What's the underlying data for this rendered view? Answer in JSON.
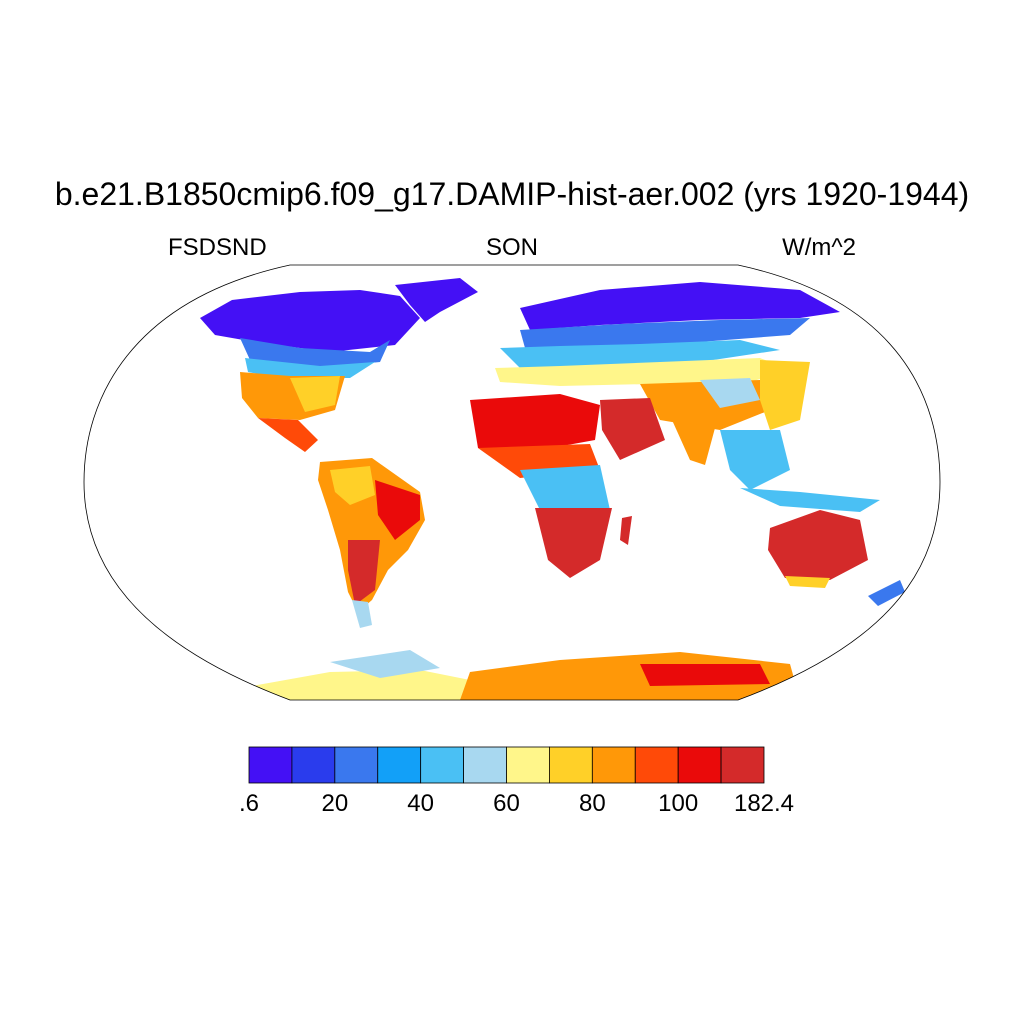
{
  "title": "b.e21.B1850cmip6.f09_g17.DAMIP-hist-aer.002 (yrs 1920-1944)",
  "left_string": "FSDSND",
  "center_string": "SON",
  "right_string": "W/m^2",
  "colorbar": {
    "colors": [
      "#4410f5",
      "#2a3ced",
      "#3a78ee",
      "#12a0f8",
      "#4ac0f4",
      "#a8d8f0",
      "#fff68a",
      "#ffd028",
      "#ff9808",
      "#ff4a08",
      "#ea0a0a",
      "#d42a2a"
    ],
    "labels": [
      ".6",
      "20",
      "40",
      "60",
      "80",
      "100",
      "182.4"
    ]
  },
  "chart_data": {
    "type": "heatmap",
    "projection": "Robinson",
    "variable": "FSDSND",
    "season": "SON",
    "units": "W/m^2",
    "levels": [
      0.6,
      10,
      20,
      30,
      40,
      50,
      60,
      70,
      80,
      90,
      100,
      110,
      182.4
    ],
    "range": [
      0.6,
      182.4
    ],
    "regions": [
      {
        "region": "Arctic / Northern Canada / Siberia",
        "value": 10
      },
      {
        "region": "Greenland coast",
        "value": 5
      },
      {
        "region": "Alaska",
        "value": 15
      },
      {
        "region": "Southern Canada",
        "value": 35
      },
      {
        "region": "Northern Europe / Russia",
        "value": 30
      },
      {
        "region": "Central Asia",
        "value": 75
      },
      {
        "region": "Western United States",
        "value": 85
      },
      {
        "region": "Eastern United States",
        "value": 75
      },
      {
        "region": "Mexico",
        "value": 95
      },
      {
        "region": "Amazon basin",
        "value": 90
      },
      {
        "region": "Eastern Brazil",
        "value": 110
      },
      {
        "region": "Argentina",
        "value": 115
      },
      {
        "region": "Patagonia",
        "value": 60
      },
      {
        "region": "Sahara",
        "value": 105
      },
      {
        "region": "Central Africa (equatorial)",
        "value": 50
      },
      {
        "region": "Southern Africa",
        "value": 115
      },
      {
        "region": "Arabian Peninsula",
        "value": 120
      },
      {
        "region": "India",
        "value": 90
      },
      {
        "region": "Southeast Asia",
        "value": 55
      },
      {
        "region": "Indonesia",
        "value": 45
      },
      {
        "region": "Australia",
        "value": 120
      },
      {
        "region": "Antarctica (East)",
        "value": 105
      },
      {
        "region": "Antarctica (West coast)",
        "value": 60
      }
    ]
  }
}
